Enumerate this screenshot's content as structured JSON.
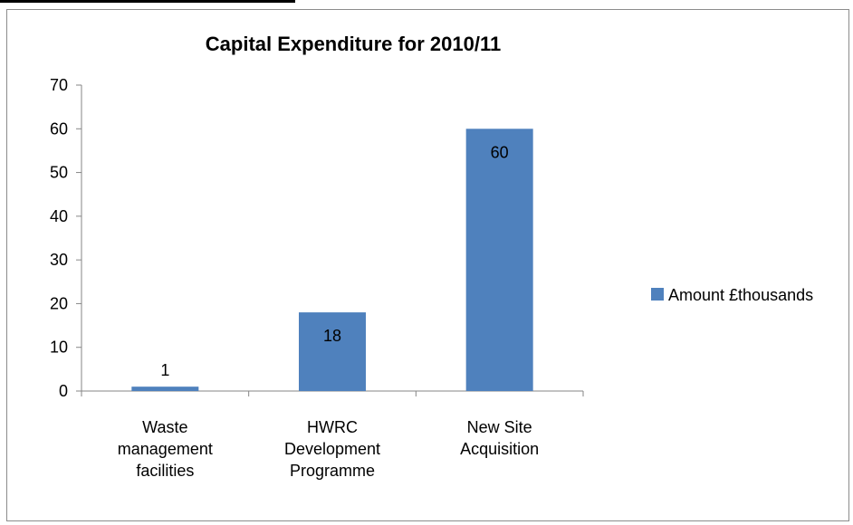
{
  "chart_data": {
    "type": "bar",
    "title": "Capital Expenditure for 2010/11",
    "categories": [
      [
        "Waste",
        "management",
        "facilities"
      ],
      [
        "HWRC",
        "Development",
        "Programme"
      ],
      [
        "New Site",
        "Acquisition"
      ]
    ],
    "series": [
      {
        "name": "Amount £thousands",
        "values": [
          1,
          18,
          60
        ],
        "color": "#4f81bd"
      }
    ],
    "data_labels": [
      "1",
      "18",
      "60"
    ],
    "ylim": [
      0,
      70
    ],
    "yticks": [
      0,
      10,
      20,
      30,
      40,
      50,
      60,
      70
    ],
    "xlabel": "",
    "ylabel": "",
    "grid": false,
    "legend_position": "right"
  }
}
